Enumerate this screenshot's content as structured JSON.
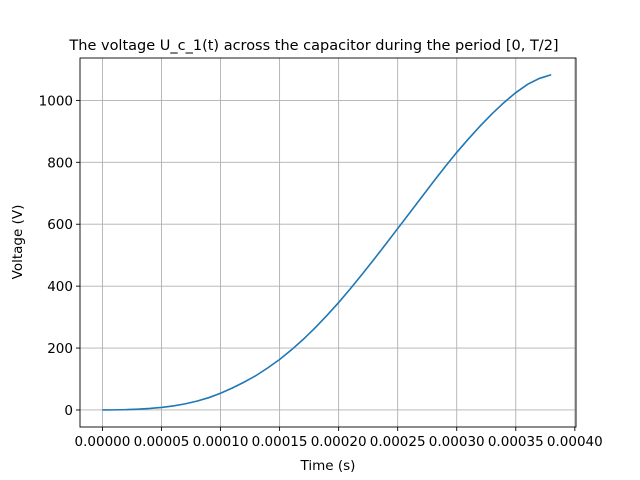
{
  "chart_data": {
    "type": "line",
    "title": "The voltage U_c_1(t) across the capacitor during the period [0, T/2]",
    "xlabel": "Time (s)",
    "ylabel": "Voltage (V)",
    "xlim": [
      -1.9e-05,
      0.000401
    ],
    "ylim": [
      -55,
      1137
    ],
    "grid": true,
    "x_ticks": [
      0,
      5e-05,
      0.0001,
      0.00015,
      0.0002,
      0.00025,
      0.0003,
      0.00035,
      0.0004
    ],
    "x_tick_labels": [
      "0.00000",
      "0.00005",
      "0.00010",
      "0.00015",
      "0.00020",
      "0.00025",
      "0.00030",
      "0.00035",
      "0.00040"
    ],
    "y_ticks": [
      0,
      200,
      400,
      600,
      800,
      1000
    ],
    "y_tick_labels": [
      "0",
      "200",
      "400",
      "600",
      "800",
      "1000"
    ],
    "series": [
      {
        "color": "#1f77b4",
        "x": [
          0,
          1e-05,
          2e-05,
          3e-05,
          4e-05,
          5e-05,
          6e-05,
          7e-05,
          8e-05,
          9e-05,
          0.0001,
          0.00011,
          0.00012,
          0.00013,
          0.00014,
          0.00015,
          0.00016,
          0.00017,
          0.00018,
          0.00019,
          0.0002,
          0.00021,
          0.00022,
          0.00023,
          0.00024,
          0.00025,
          0.00026,
          0.00027,
          0.00028,
          0.00029,
          0.0003,
          0.00031,
          0.00032,
          0.00033,
          0.00034,
          0.00035,
          0.00036,
          0.00037,
          0.00038
        ],
        "y": [
          0,
          0.3,
          1.1,
          2.6,
          4.9,
          8.2,
          13.1,
          19.7,
          28.5,
          39.7,
          54,
          71,
          90,
          111,
          136,
          163,
          194,
          228,
          265,
          305,
          347,
          392,
          439,
          487,
          536,
          586,
          636,
          686,
          736,
          785,
          832,
          876,
          918,
          957,
          993,
          1025,
          1052,
          1071,
          1083
        ]
      }
    ]
  }
}
